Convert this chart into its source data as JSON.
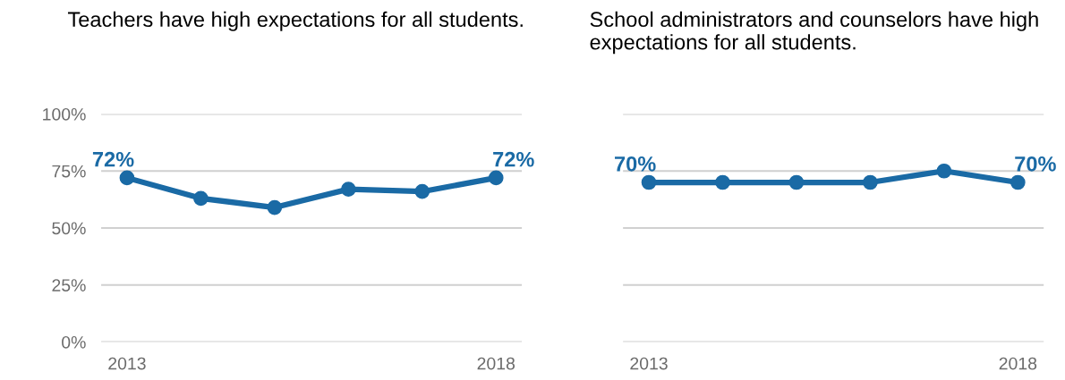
{
  "chart_data": [
    {
      "type": "line",
      "title": "Teachers have high expectations for all students.",
      "categories": [
        "2013",
        null,
        null,
        null,
        null,
        "2018"
      ],
      "series": [
        {
          "color": "#1a6aa5",
          "values": [
            72,
            63,
            59,
            67,
            66,
            72
          ],
          "value_labels": [
            "72%",
            null,
            null,
            null,
            null,
            "72%"
          ]
        }
      ],
      "ylim": [
        0,
        100
      ],
      "yticks": [
        {
          "value": 0,
          "label": "0%"
        },
        {
          "value": 25,
          "label": "25%"
        },
        {
          "value": 50,
          "label": "50%"
        },
        {
          "value": 75,
          "label": "75%"
        },
        {
          "value": 100,
          "label": "100%"
        }
      ],
      "grid": "y",
      "marker": "circle",
      "line_style": "solid"
    },
    {
      "type": "line",
      "title": "School administrators and counselors have high expectations for all students.",
      "categories": [
        "2013",
        null,
        null,
        null,
        null,
        "2018"
      ],
      "series": [
        {
          "color": "#1a6aa5",
          "values": [
            70,
            70,
            70,
            70,
            75,
            70
          ],
          "value_labels": [
            "70%",
            null,
            null,
            null,
            null,
            "70%"
          ]
        }
      ],
      "ylim": [
        0,
        100
      ],
      "yticks": [
        0,
        25,
        50,
        75,
        100
      ],
      "grid": "y",
      "marker": "circle",
      "line_style": "solid",
      "tick_labels": "x"
    }
  ]
}
